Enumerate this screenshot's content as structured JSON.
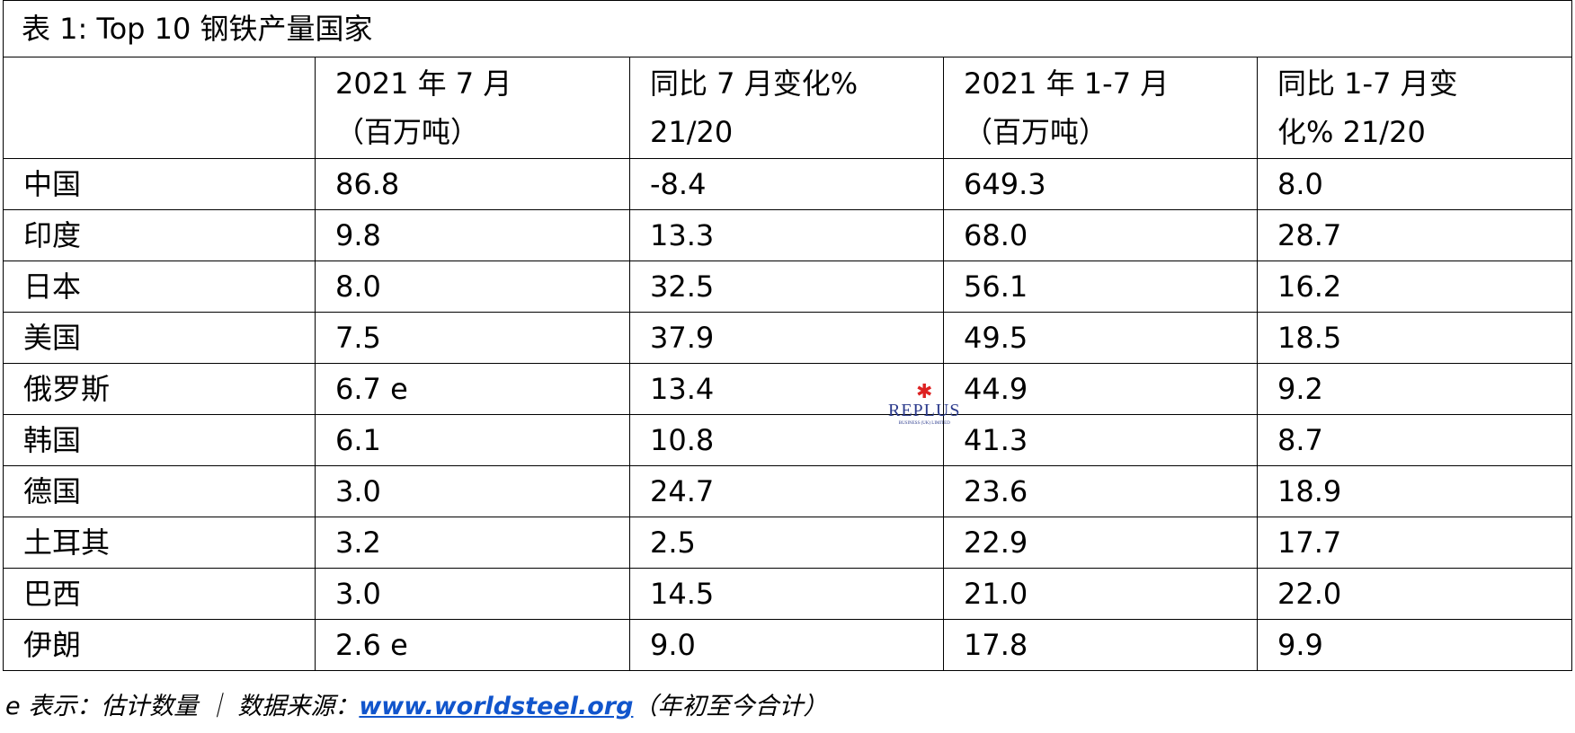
{
  "table": {
    "title": "表 1: Top 10 钢铁产量国家",
    "header": [
      "",
      "2021 年 7 月\n（百万吨）",
      "同比 7 月变化%\n21/20",
      "2021 年 1-7 月\n（百万吨）",
      "同比 1-7 月变\n化% 21/20"
    ],
    "rows": [
      [
        "中国",
        "86.8",
        "-8.4",
        "649.3",
        "8.0"
      ],
      [
        "印度",
        "9.8",
        "13.3",
        "68.0",
        "28.7"
      ],
      [
        "日本",
        "8.0",
        "32.5",
        "56.1",
        "16.2"
      ],
      [
        "美国",
        "7.5",
        "37.9",
        "49.5",
        "18.5"
      ],
      [
        "俄罗斯",
        "6.7 e",
        "13.4",
        "44.9",
        "9.2"
      ],
      [
        "韩国",
        "6.1",
        "10.8",
        "41.3",
        "8.7"
      ],
      [
        "德国",
        "3.0",
        "24.7",
        "23.6",
        "18.9"
      ],
      [
        "土耳其",
        "3.2",
        "2.5",
        "22.9",
        "17.7"
      ],
      [
        "巴西",
        "3.0",
        "14.5",
        "21.0",
        "22.0"
      ],
      [
        "伊朗",
        "2.6 e",
        "9.0",
        "17.8",
        "9.9"
      ]
    ]
  },
  "footnote": {
    "note": "e 表示：估计数量 ｜ 数据来源：",
    "link": "www.worldsteel.org",
    "suffix": "（年初至今合计）"
  },
  "watermark": {
    "name": "REPLUS",
    "sub": "BUSINESS (UK) LIMITED"
  }
}
